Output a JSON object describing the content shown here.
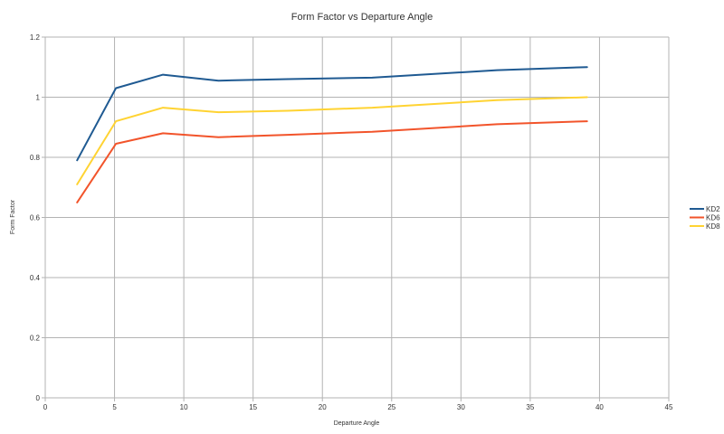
{
  "chart_data": {
    "type": "line",
    "title": "Form Factor vs Departure Angle",
    "xlabel": "Departure Angle",
    "ylabel": "Form Factor",
    "xlim": [
      0,
      45
    ],
    "ylim": [
      0,
      1.2
    ],
    "x_ticks": [
      "0",
      "5",
      "10",
      "15",
      "20",
      "25",
      "30",
      "35",
      "40",
      "45"
    ],
    "y_ticks": [
      "0",
      "0.2",
      "0.4",
      "0.6",
      "0.8",
      "1",
      "1.2"
    ],
    "grid": true,
    "legend_position": "right",
    "x": [
      2.3,
      5.1,
      8.5,
      12.5,
      17.5,
      23.6,
      32.6,
      39.1
    ],
    "series": [
      {
        "name": "KD2",
        "color": "#1f5a92",
        "values": [
          0.79,
          1.03,
          1.075,
          1.055,
          1.06,
          1.065,
          1.09,
          1.1
        ]
      },
      {
        "name": "KD6",
        "color": "#f2542b",
        "values": [
          0.65,
          0.845,
          0.88,
          0.867,
          0.875,
          0.885,
          0.91,
          0.92
        ]
      },
      {
        "name": "KD8",
        "color": "#ffd332",
        "values": [
          0.71,
          0.92,
          0.965,
          0.95,
          0.955,
          0.965,
          0.99,
          1.0
        ]
      }
    ]
  }
}
